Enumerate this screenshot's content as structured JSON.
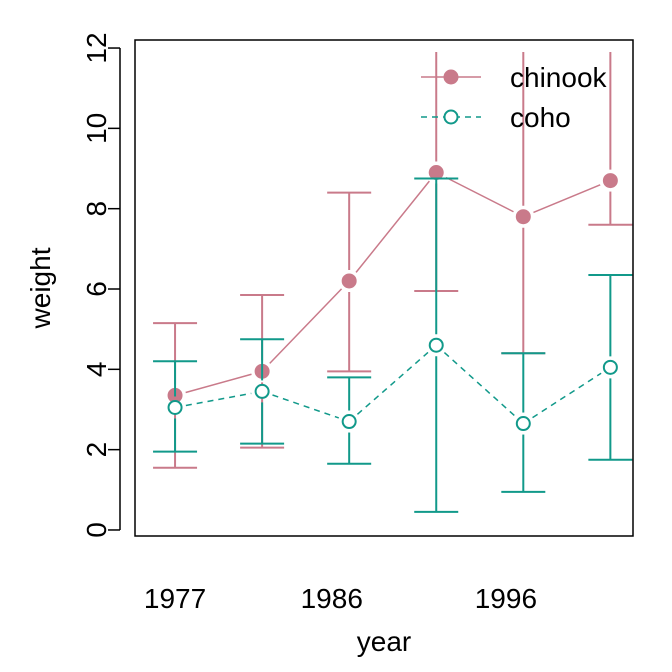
{
  "chart_data": {
    "type": "line",
    "title": "",
    "xlabel": "year",
    "ylabel": "weight",
    "xlim": [
      1974.7,
      2003.3
    ],
    "ylim": [
      -0.15,
      12.2
    ],
    "x_ticks": [
      {
        "value": 1977,
        "label": "1977"
      },
      {
        "value": 1986,
        "label": "1986"
      },
      {
        "value": 1996,
        "label": "1996"
      }
    ],
    "y_ticks": [
      {
        "value": 0,
        "label": "0"
      },
      {
        "value": 2,
        "label": "2"
      },
      {
        "value": 4,
        "label": "4"
      },
      {
        "value": 6,
        "label": "6"
      },
      {
        "value": 8,
        "label": "8"
      },
      {
        "value": 10,
        "label": "10"
      },
      {
        "value": 12,
        "label": "12"
      }
    ],
    "grid": false,
    "legend_position": "top-right",
    "series": [
      {
        "name": "chinook",
        "color": "#c97a8a",
        "marker": "filled-circle",
        "line_style": "solid",
        "points": [
          {
            "x": 1977,
            "y": 3.35,
            "lower": 1.55,
            "upper": 5.15
          },
          {
            "x": 1982,
            "y": 3.95,
            "lower": 2.05,
            "upper": 5.85
          },
          {
            "x": 1987,
            "y": 6.2,
            "lower": 3.95,
            "upper": 8.4
          },
          {
            "x": 1992,
            "y": 8.9,
            "lower": 5.95,
            "upper": 11.9
          },
          {
            "x": 1997,
            "y": 7.8,
            "lower": 4.4,
            "upper": 11.9
          },
          {
            "x": 2002,
            "y": 8.7,
            "lower": 7.6,
            "upper": 11.9
          }
        ]
      },
      {
        "name": "coho",
        "color": "#11998a",
        "marker": "open-circle",
        "line_style": "dashed",
        "points": [
          {
            "x": 1977,
            "y": 3.05,
            "lower": 1.95,
            "upper": 4.2
          },
          {
            "x": 1982,
            "y": 3.45,
            "lower": 2.15,
            "upper": 4.75
          },
          {
            "x": 1987,
            "y": 2.7,
            "lower": 1.65,
            "upper": 3.8
          },
          {
            "x": 1992,
            "y": 4.6,
            "lower": 0.45,
            "upper": 8.75
          },
          {
            "x": 1997,
            "y": 2.65,
            "lower": 0.95,
            "upper": 4.4
          },
          {
            "x": 2002,
            "y": 4.05,
            "lower": 1.75,
            "upper": 6.35
          }
        ]
      }
    ]
  }
}
